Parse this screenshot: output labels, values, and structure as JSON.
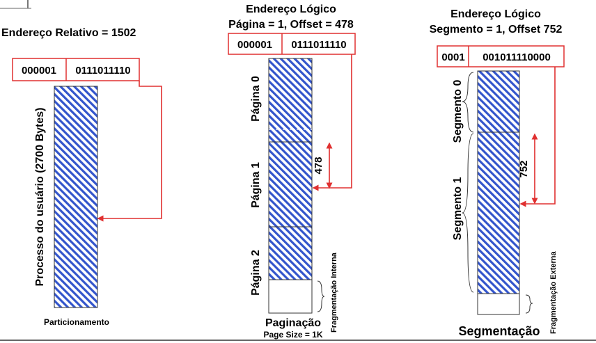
{
  "col1": {
    "title": "Endereço Relativo = 1502",
    "addr_page": "000001",
    "addr_offset": "0111011110",
    "block_label": "Processo do usuário  (2700 Bytes)",
    "caption": "Particionamento"
  },
  "col2": {
    "title_line1": "Endereço Lógico",
    "title_line2": "Página = 1, Offset = 478",
    "addr_page": "000001",
    "addr_offset": "0111011110",
    "pages": [
      "Página 0",
      "Página 1",
      "Página 2"
    ],
    "offset_label": "478",
    "frag_label": "Fragmentação Interna",
    "caption": "Paginação",
    "subcaption": "Page Size = 1K"
  },
  "col3": {
    "title_line1": "Endereço Lógico",
    "title_line2": "Segmento = 1, Offset 752",
    "addr_segment": "0001",
    "addr_offset": "001011110000",
    "segments": [
      "Segmento 0",
      "Segmento 1"
    ],
    "offset_label": "752",
    "frag_label": "Fragmentação Externa",
    "caption": "Segmentação"
  },
  "colors": {
    "hatch": "#3355cc",
    "address_border": "#e03030",
    "arrow": "#e03030"
  }
}
